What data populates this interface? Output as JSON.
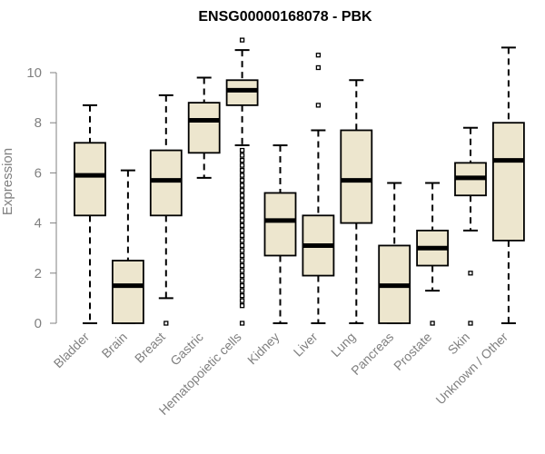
{
  "chart_data": {
    "type": "boxplot",
    "title": "ENSG00000168078 - PBK",
    "xlabel": "",
    "ylabel": "Expression",
    "ylim": [
      0,
      11.5
    ],
    "yticks": [
      0,
      2,
      4,
      6,
      8,
      10
    ],
    "box_fill": "#ede6ce",
    "outline_color": "#000000",
    "axis_color": "#808080",
    "categories": [
      "Bladder",
      "Brain",
      "Breast",
      "Gastric",
      "Hematopoietic cells",
      "Kidney",
      "Liver",
      "Lung",
      "Pancreas",
      "Prostate",
      "Skin",
      "Unknown / Other"
    ],
    "boxes": [
      {
        "name": "Bladder",
        "min": 0.0,
        "q1": 4.3,
        "median": 5.9,
        "q3": 7.2,
        "max": 8.7,
        "outliers": []
      },
      {
        "name": "Brain",
        "min": 0.0,
        "q1": 0.0,
        "median": 1.5,
        "q3": 2.5,
        "max": 6.1,
        "outliers": []
      },
      {
        "name": "Breast",
        "min": 1.0,
        "q1": 4.3,
        "median": 5.7,
        "q3": 6.9,
        "max": 9.1,
        "outliers": [
          0.0
        ]
      },
      {
        "name": "Gastric",
        "min": 5.8,
        "q1": 6.8,
        "median": 8.1,
        "q3": 8.8,
        "max": 9.8,
        "outliers": []
      },
      {
        "name": "Hematopoietic cells",
        "min": 7.1,
        "q1": 8.7,
        "median": 9.3,
        "q3": 9.7,
        "max": 10.9,
        "outliers": [
          11.3,
          6.9,
          6.7,
          6.5,
          6.3,
          6.1,
          5.9,
          5.7,
          5.5,
          5.3,
          5.1,
          4.9,
          4.7,
          4.5,
          4.3,
          4.1,
          3.9,
          3.7,
          3.5,
          3.3,
          3.1,
          2.9,
          2.7,
          2.5,
          2.3,
          2.1,
          1.9,
          1.7,
          1.5,
          1.3,
          1.1,
          0.9,
          0.7,
          0.0
        ]
      },
      {
        "name": "Kidney",
        "min": 0.0,
        "q1": 2.7,
        "median": 4.1,
        "q3": 5.2,
        "max": 7.1,
        "outliers": []
      },
      {
        "name": "Liver",
        "min": 0.0,
        "q1": 1.9,
        "median": 3.1,
        "q3": 4.3,
        "max": 7.7,
        "outliers": [
          10.7,
          10.2,
          8.7
        ]
      },
      {
        "name": "Lung",
        "min": 0.0,
        "q1": 4.0,
        "median": 5.7,
        "q3": 7.7,
        "max": 9.7,
        "outliers": []
      },
      {
        "name": "Pancreas",
        "min": 0.0,
        "q1": 0.0,
        "median": 1.5,
        "q3": 3.1,
        "max": 5.6,
        "outliers": []
      },
      {
        "name": "Prostate",
        "min": 1.3,
        "q1": 2.3,
        "median": 3.0,
        "q3": 3.7,
        "max": 5.6,
        "outliers": [
          0.0
        ]
      },
      {
        "name": "Skin",
        "min": 3.7,
        "q1": 5.1,
        "median": 5.8,
        "q3": 6.4,
        "max": 7.8,
        "outliers": [
          2.0,
          0.0
        ]
      },
      {
        "name": "Unknown / Other",
        "min": 0.0,
        "q1": 3.3,
        "median": 6.5,
        "q3": 8.0,
        "max": 11.0,
        "outliers": []
      }
    ]
  }
}
